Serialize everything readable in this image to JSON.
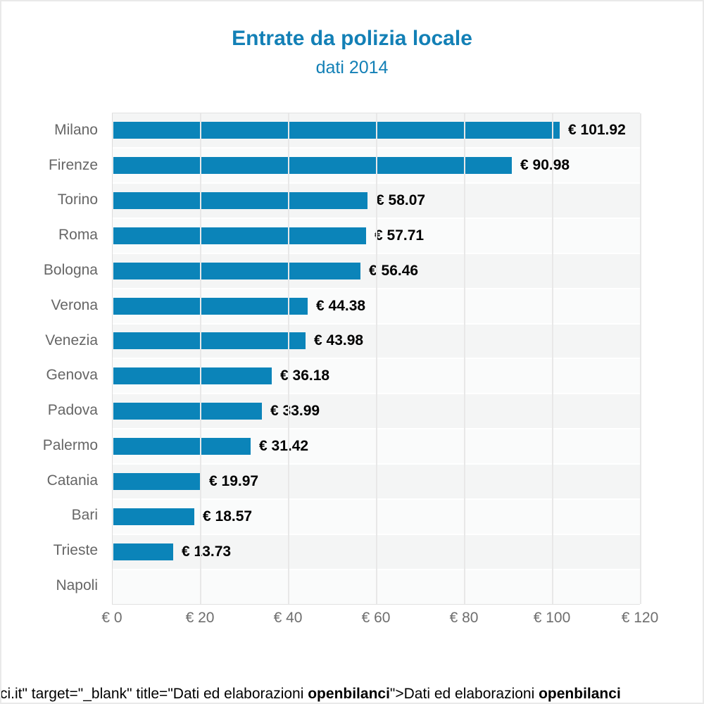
{
  "title": {
    "text": "Entrate da polizia locale",
    "subtitle": "dati 2014",
    "color": "#1380b6"
  },
  "chart_data": {
    "type": "bar",
    "orientation": "horizontal",
    "title": "Entrate da polizia locale",
    "subtitle": "dati 2014",
    "xlabel": "",
    "ylabel": "",
    "xlim": [
      0,
      120
    ],
    "grid": true,
    "legend": "none",
    "bar_color": "#0b84b9",
    "categories": [
      "Milano",
      "Firenze",
      "Torino",
      "Roma",
      "Bologna",
      "Verona",
      "Venezia",
      "Genova",
      "Padova",
      "Palermo",
      "Catania",
      "Bari",
      "Trieste",
      "Napoli"
    ],
    "values": [
      101.92,
      90.98,
      58.07,
      57.71,
      56.46,
      44.38,
      43.98,
      36.18,
      33.99,
      31.42,
      19.97,
      18.57,
      13.73,
      0
    ],
    "value_labels": [
      "€ 101.92",
      "€ 90.98",
      "€ 58.07",
      "€ 57.71",
      "€ 56.46",
      "€ 44.38",
      "€ 43.98",
      "€ 36.18",
      "€ 33.99",
      "€ 31.42",
      "€ 19.97",
      "€ 18.57",
      "€ 13.73",
      ""
    ],
    "x_tick_values": [
      0,
      20,
      40,
      60,
      80,
      100,
      120
    ],
    "x_tick_labels": [
      "€ 0",
      "€ 20",
      "€ 40",
      "€ 60",
      "€ 80",
      "€ 100",
      "€ 120"
    ]
  },
  "footer": {
    "segments": [
      {
        "text": "ci.it\" target=\"_blank\" title=\"Dati ed elaborazioni ",
        "bold": false
      },
      {
        "text": "openbilanci",
        "bold": true
      },
      {
        "text": "\">Dati ed elaborazioni ",
        "bold": false
      },
      {
        "text": "openbilanci",
        "bold": true
      }
    ]
  }
}
